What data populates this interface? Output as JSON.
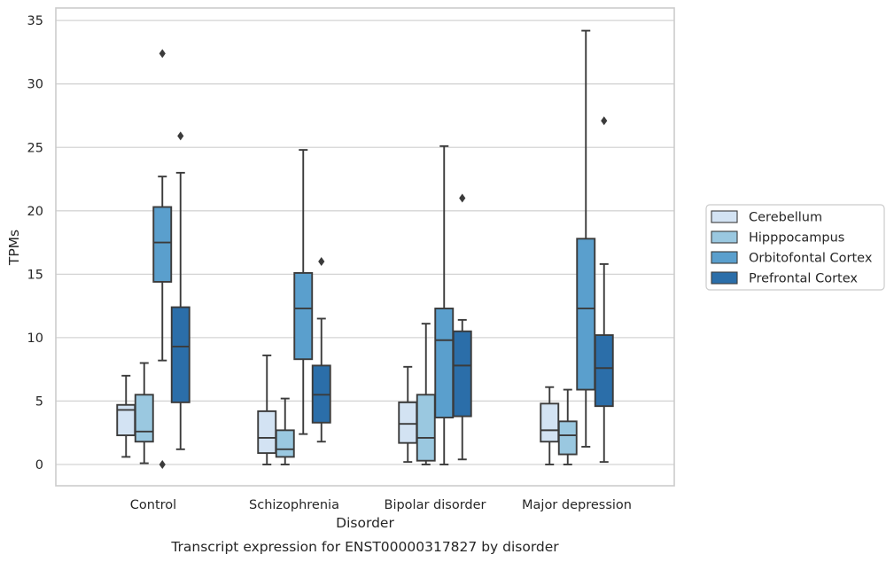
{
  "chart_data": {
    "type": "box",
    "xlabel": "Disorder",
    "ylabel": "TPMs",
    "caption": "Transcript expression for ENST00000317827 by disorder",
    "categories": [
      "Control",
      "Schizophrenia",
      "Bipolar disorder",
      "Major depression"
    ],
    "ylim": [
      -1.6,
      36
    ],
    "yticks": [
      0,
      5,
      10,
      15,
      20,
      25,
      30,
      35
    ],
    "grid": "horizontal",
    "legend_position": "right",
    "series": [
      {
        "name": "Cerebellum",
        "color": "#d3e3f3",
        "boxes": [
          {
            "category": "Control",
            "whislo": 0.6,
            "q1": 2.3,
            "med": 4.3,
            "q3": 4.7,
            "whishi": 7.0,
            "fliers": []
          },
          {
            "category": "Schizophrenia",
            "whislo": 0.0,
            "q1": 0.9,
            "med": 2.1,
            "q3": 4.2,
            "whishi": 8.6,
            "fliers": []
          },
          {
            "category": "Bipolar disorder",
            "whislo": 0.2,
            "q1": 1.7,
            "med": 3.2,
            "q3": 4.9,
            "whishi": 7.7,
            "fliers": []
          },
          {
            "category": "Major depression",
            "whislo": 0.0,
            "q1": 1.8,
            "med": 2.7,
            "q3": 4.8,
            "whishi": 6.1,
            "fliers": []
          }
        ]
      },
      {
        "name": "Hipppocampus",
        "color": "#9ac8e0",
        "boxes": [
          {
            "category": "Control",
            "whislo": 0.1,
            "q1": 1.8,
            "med": 2.6,
            "q3": 5.5,
            "whishi": 8.0,
            "fliers": []
          },
          {
            "category": "Schizophrenia",
            "whislo": 0.0,
            "q1": 0.6,
            "med": 1.2,
            "q3": 2.7,
            "whishi": 5.2,
            "fliers": []
          },
          {
            "category": "Bipolar disorder",
            "whislo": 0.0,
            "q1": 0.3,
            "med": 2.1,
            "q3": 5.5,
            "whishi": 11.1,
            "fliers": []
          },
          {
            "category": "Major depression",
            "whislo": 0.0,
            "q1": 0.8,
            "med": 2.3,
            "q3": 3.4,
            "whishi": 5.9,
            "fliers": []
          }
        ]
      },
      {
        "name": "Orbitofontal Cortex",
        "color": "#5a9fcd",
        "boxes": [
          {
            "category": "Control",
            "whislo": 8.2,
            "q1": 14.4,
            "med": 17.5,
            "q3": 20.3,
            "whishi": 22.7,
            "fliers": [
              32.4,
              0.0
            ]
          },
          {
            "category": "Schizophrenia",
            "whislo": 2.4,
            "q1": 8.3,
            "med": 12.3,
            "q3": 15.1,
            "whishi": 24.8,
            "fliers": []
          },
          {
            "category": "Bipolar disorder",
            "whislo": 0.0,
            "q1": 3.7,
            "med": 9.8,
            "q3": 12.3,
            "whishi": 25.1,
            "fliers": []
          },
          {
            "category": "Major depression",
            "whislo": 1.4,
            "q1": 5.9,
            "med": 12.3,
            "q3": 17.8,
            "whishi": 34.2,
            "fliers": []
          }
        ]
      },
      {
        "name": "Prefrontal Cortex",
        "color": "#2b6ea9",
        "boxes": [
          {
            "category": "Control",
            "whislo": 1.2,
            "q1": 4.9,
            "med": 9.3,
            "q3": 12.4,
            "whishi": 23.0,
            "fliers": [
              25.9
            ]
          },
          {
            "category": "Schizophrenia",
            "whislo": 1.8,
            "q1": 3.3,
            "med": 5.5,
            "q3": 7.8,
            "whishi": 11.5,
            "fliers": [
              16.0
            ]
          },
          {
            "category": "Bipolar disorder",
            "whislo": 0.4,
            "q1": 3.8,
            "med": 7.8,
            "q3": 10.5,
            "whishi": 11.4,
            "fliers": [
              21.0
            ]
          },
          {
            "category": "Major depression",
            "whislo": 0.2,
            "q1": 4.6,
            "med": 7.6,
            "q3": 10.2,
            "whishi": 15.8,
            "fliers": [
              27.1
            ]
          }
        ]
      }
    ]
  }
}
